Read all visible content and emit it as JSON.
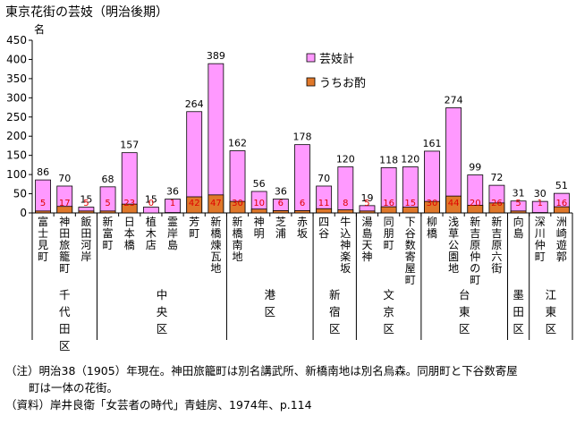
{
  "title": "東京花街の芸妓（明治後期）",
  "chart_data": {
    "type": "bar",
    "stacked": false,
    "ylabel": "名",
    "ylim": [
      0,
      450
    ],
    "yticks": [
      0,
      50,
      100,
      150,
      200,
      250,
      300,
      350,
      400,
      450
    ],
    "grid": false,
    "legend_position": "top-right",
    "categories": [
      "富士見町",
      "神田旅籠町",
      "飯田河岸",
      "新富町",
      "日本橋",
      "植木店",
      "霊岸島",
      "芳町",
      "新橋煉瓦地",
      "新橋南地",
      "神明",
      "芝浦",
      "赤坂",
      "四谷",
      "牛込神楽坂",
      "湯島天神",
      "同朋町",
      "下谷数寄屋町",
      "柳橋",
      "浅草公園地",
      "新吉原仲の町",
      "新吉原六街",
      "向島",
      "深川仲町",
      "洲崎遊郭"
    ],
    "series": [
      {
        "name": "芸妓計",
        "color": "#ff99ff",
        "values": [
          86,
          70,
          15,
          68,
          157,
          15,
          36,
          264,
          389,
          162,
          56,
          36,
          178,
          70,
          120,
          19,
          118,
          120,
          161,
          274,
          99,
          72,
          31,
          30,
          51
        ]
      },
      {
        "name": "うちお酌",
        "color": "#e0782a",
        "values": [
          5,
          17,
          5,
          5,
          23,
          0,
          1,
          42,
          47,
          30,
          10,
          6,
          6,
          11,
          8,
          5,
          16,
          15,
          30,
          44,
          20,
          26,
          5,
          1,
          16
        ]
      }
    ],
    "groups": [
      {
        "label": "千代田区",
        "from": 0,
        "to": 2
      },
      {
        "label": "中央区",
        "from": 3,
        "to": 8
      },
      {
        "label": "港区",
        "from": 9,
        "to": 12
      },
      {
        "label": "新宿区",
        "from": 13,
        "to": 14
      },
      {
        "label": "文京区",
        "from": 15,
        "to": 17
      },
      {
        "label": "台東区",
        "from": 18,
        "to": 21
      },
      {
        "label": "墨田区",
        "from": 22,
        "to": 22
      },
      {
        "label": "江東区",
        "from": 23,
        "to": 24
      }
    ]
  },
  "notes": {
    "line1": "（注）明治38（1905）年現在。神田旅籠町は別名講武所、新橋南地は別名烏森。同朋町と下谷数寄屋",
    "line2": "町は一体の花街。",
    "line3": "（資料）岸井良衛「女芸者の時代」青蛙房、1974年、p.114"
  }
}
